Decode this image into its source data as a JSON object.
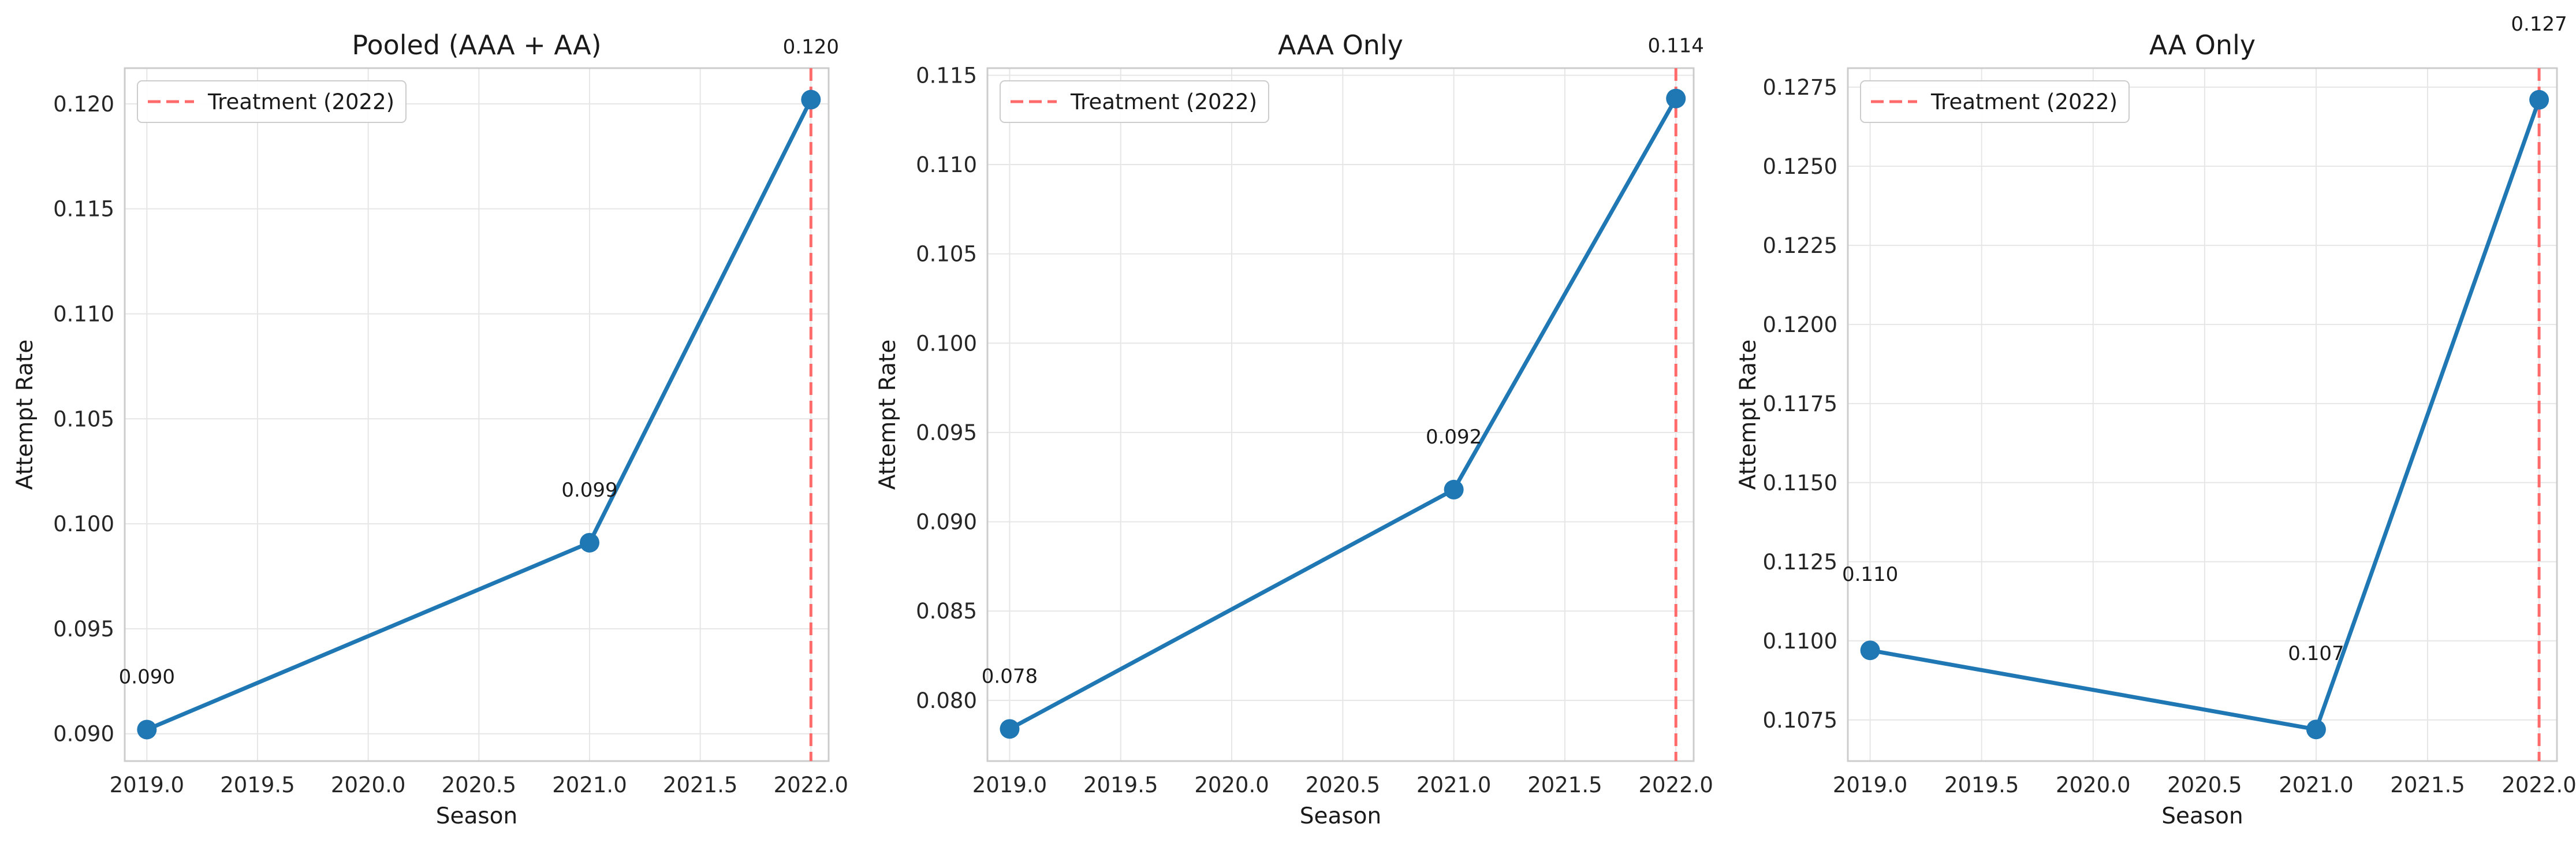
{
  "colors": {
    "series": "#1f77b4",
    "treatment_line": "#ff6b6b",
    "grid": "#e6e6e6",
    "frame": "#cccccc"
  },
  "chart_data": [
    {
      "type": "line",
      "title": "Pooled (AAA + AA)",
      "xlabel": "Season",
      "ylabel": "Attempt Rate",
      "x": [
        2019,
        2021,
        2022
      ],
      "values": [
        0.0902,
        0.0991,
        0.1202
      ],
      "data_labels": [
        "0.090",
        "0.099",
        "0.120"
      ],
      "xlim": [
        2018.9,
        2022.08
      ],
      "ylim": [
        0.0887,
        0.1217
      ],
      "xticks": [
        2019.0,
        2019.5,
        2020.0,
        2020.5,
        2021.0,
        2021.5,
        2022.0
      ],
      "xtick_labels": [
        "2019.0",
        "2019.5",
        "2020.0",
        "2020.5",
        "2021.0",
        "2021.5",
        "2022.0"
      ],
      "yticks": [
        0.09,
        0.095,
        0.1,
        0.105,
        0.11,
        0.115,
        0.12
      ],
      "ytick_labels": [
        "0.090",
        "0.095",
        "0.100",
        "0.105",
        "0.110",
        "0.115",
        "0.120"
      ],
      "vline": {
        "x": 2022,
        "label": "Treatment (2022)"
      },
      "grid": true,
      "legend": "top-left"
    },
    {
      "type": "line",
      "title": "AAA Only",
      "xlabel": "Season",
      "ylabel": "Attempt Rate",
      "x": [
        2019,
        2021,
        2022
      ],
      "values": [
        0.0784,
        0.0918,
        0.1137
      ],
      "data_labels": [
        "0.078",
        "0.092",
        "0.114"
      ],
      "xlim": [
        2018.9,
        2022.08
      ],
      "ylim": [
        0.0766,
        0.1154
      ],
      "xticks": [
        2019.0,
        2019.5,
        2020.0,
        2020.5,
        2021.0,
        2021.5,
        2022.0
      ],
      "xtick_labels": [
        "2019.0",
        "2019.5",
        "2020.0",
        "2020.5",
        "2021.0",
        "2021.5",
        "2022.0"
      ],
      "yticks": [
        0.08,
        0.085,
        0.09,
        0.095,
        0.1,
        0.105,
        0.11,
        0.115
      ],
      "ytick_labels": [
        "0.080",
        "0.085",
        "0.090",
        "0.095",
        "0.100",
        "0.105",
        "0.110",
        "0.115"
      ],
      "vline": {
        "x": 2022,
        "label": "Treatment (2022)"
      },
      "grid": true,
      "legend": "top-left"
    },
    {
      "type": "line",
      "title": "AA Only",
      "xlabel": "Season",
      "ylabel": "Attempt Rate",
      "x": [
        2019,
        2021,
        2022
      ],
      "values": [
        0.1097,
        0.1072,
        0.1271
      ],
      "data_labels": [
        "0.110",
        "0.107",
        "0.127"
      ],
      "xlim": [
        2018.9,
        2022.08
      ],
      "ylim": [
        0.1062,
        0.1281
      ],
      "xticks": [
        2019.0,
        2019.5,
        2020.0,
        2020.5,
        2021.0,
        2021.5,
        2022.0
      ],
      "xtick_labels": [
        "2019.0",
        "2019.5",
        "2020.0",
        "2020.5",
        "2021.0",
        "2021.5",
        "2022.0"
      ],
      "yticks": [
        0.1075,
        0.11,
        0.1125,
        0.115,
        0.1175,
        0.12,
        0.1225,
        0.125,
        0.1275
      ],
      "ytick_labels": [
        "0.1075",
        "0.1100",
        "0.1125",
        "0.1150",
        "0.1175",
        "0.1200",
        "0.1225",
        "0.1250",
        "0.1275"
      ],
      "vline": {
        "x": 2022,
        "label": "Treatment (2022)"
      },
      "grid": true,
      "legend": "top-left"
    }
  ]
}
